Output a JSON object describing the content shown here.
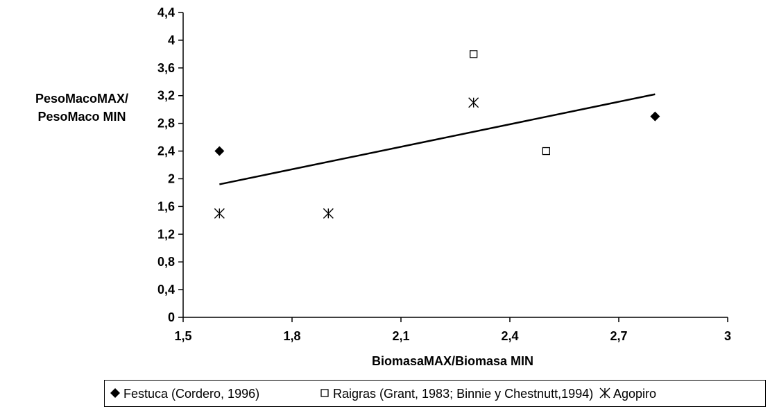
{
  "chart_data": {
    "type": "scatter",
    "title": "",
    "xlabel": "BiomasaMAX/Biomasa MIN",
    "ylabel_lines": [
      "PesoMacoMAX/",
      "PesoMaco MIN"
    ],
    "xlim": [
      1.5,
      3
    ],
    "ylim": [
      0,
      4.4
    ],
    "x_ticks": [
      "1,5",
      "1,8",
      "2,1",
      "2,4",
      "2,7",
      "3"
    ],
    "x_tick_values": [
      1.5,
      1.8,
      2.1,
      2.4,
      2.7,
      3.0
    ],
    "y_ticks": [
      "0",
      "0,4",
      "0,8",
      "1,2",
      "1,6",
      "2",
      "2,4",
      "2,8",
      "3,2",
      "3,6",
      "4",
      "4,4"
    ],
    "y_tick_values": [
      0,
      0.4,
      0.8,
      1.2,
      1.6,
      2.0,
      2.4,
      2.8,
      3.2,
      3.6,
      4.0,
      4.4
    ],
    "grid": false,
    "legend_position": "bottom",
    "series": [
      {
        "name": "Festuca (Cordero, 1996)",
        "marker": "diamond",
        "color": "#000000",
        "points": [
          [
            1.6,
            2.4
          ],
          [
            2.8,
            2.9
          ]
        ]
      },
      {
        "name": "Raigras (Grant, 1983; Binnie y Chestnutt,1994)",
        "marker": "square",
        "color": "#000000",
        "points": [
          [
            2.3,
            3.8
          ],
          [
            2.5,
            2.4
          ]
        ]
      },
      {
        "name": "Agopiro",
        "marker": "asterisk",
        "color": "#000000",
        "points": [
          [
            1.6,
            1.5
          ],
          [
            1.9,
            1.5
          ],
          [
            2.3,
            3.1
          ]
        ]
      }
    ],
    "trendline": {
      "x": [
        1.6,
        2.8
      ],
      "y": [
        1.92,
        3.22
      ]
    }
  }
}
